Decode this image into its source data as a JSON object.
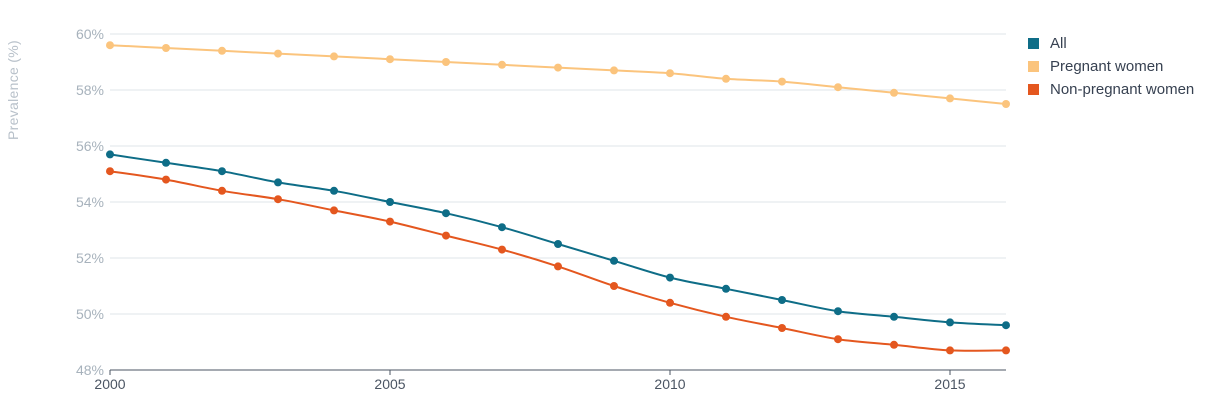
{
  "chart_data": {
    "type": "line",
    "title": "",
    "ylabel": "Prevalence (%)",
    "xlabel": "",
    "xlim": [
      2000,
      2016
    ],
    "ylim": [
      48,
      60
    ],
    "x": [
      2000,
      2001,
      2002,
      2003,
      2004,
      2005,
      2006,
      2007,
      2008,
      2009,
      2010,
      2011,
      2012,
      2013,
      2014,
      2015,
      2016
    ],
    "x_ticks": [
      2000,
      2005,
      2010,
      2015
    ],
    "y_ticks": [
      48,
      50,
      52,
      54,
      56,
      58,
      60
    ],
    "y_tick_suffix": "%",
    "grid": true,
    "legend_position": "top-right",
    "series": [
      {
        "name": "All",
        "color": "#0e6d87",
        "values": [
          55.7,
          55.4,
          55.1,
          54.7,
          54.4,
          54.0,
          53.6,
          53.1,
          52.5,
          51.9,
          51.3,
          50.9,
          50.5,
          50.1,
          49.9,
          49.7,
          49.6
        ]
      },
      {
        "name": "Pregnant women",
        "color": "#fbc47d",
        "values": [
          59.6,
          59.5,
          59.4,
          59.3,
          59.2,
          59.1,
          59.0,
          58.9,
          58.8,
          58.7,
          58.6,
          58.4,
          58.3,
          58.1,
          57.9,
          57.7,
          57.5
        ]
      },
      {
        "name": "Non-pregnant women",
        "color": "#e4571f",
        "values": [
          55.1,
          54.8,
          54.4,
          54.1,
          53.7,
          53.3,
          52.8,
          52.3,
          51.7,
          51.0,
          50.4,
          49.9,
          49.5,
          49.1,
          48.9,
          48.7,
          48.7
        ]
      }
    ]
  }
}
